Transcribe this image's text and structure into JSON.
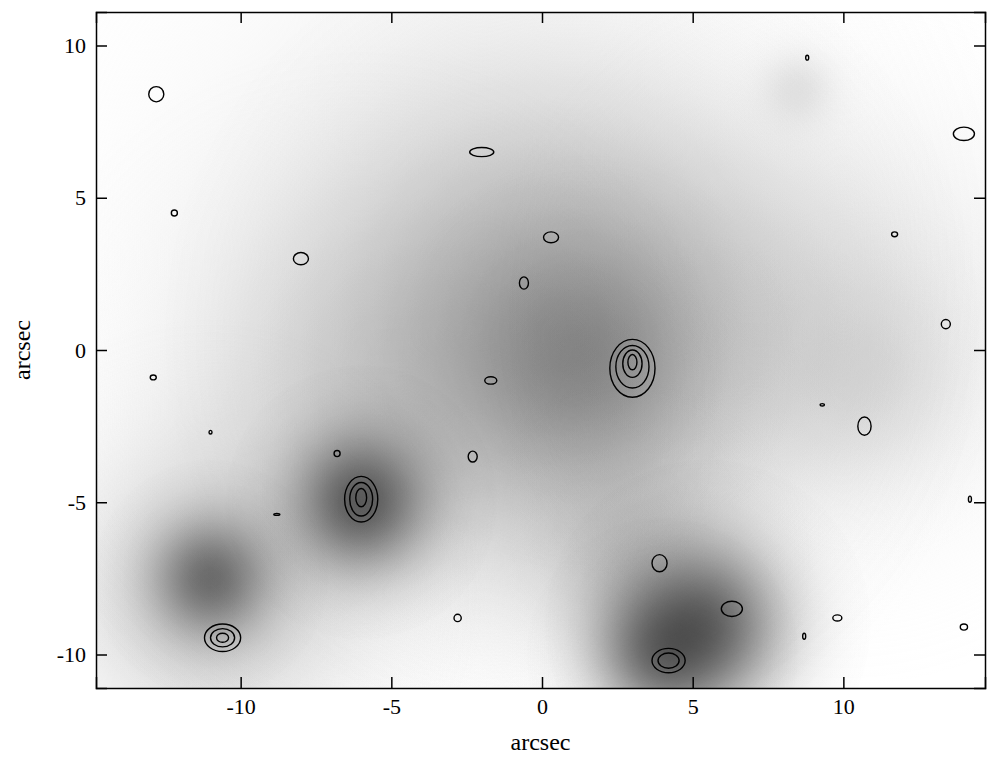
{
  "chart_data": {
    "type": "contour",
    "xlabel": "arcsec",
    "ylabel": "arcsec",
    "xlim": [
      -14.8,
      14.7
    ],
    "ylim": [
      -11.1,
      11.1
    ],
    "xticks": [
      -10,
      -5,
      0,
      5,
      10
    ],
    "yticks": [
      -10,
      -5,
      0,
      5,
      10
    ],
    "grid": false,
    "color": "#000000",
    "sources": [
      {
        "x": -2,
        "y": 3,
        "sigma": 6,
        "amplitude": 0.18
      },
      {
        "x": 1,
        "y": 0.5,
        "sigma": 4.5,
        "amplitude": 0.4
      },
      {
        "x": 1.5,
        "y": -0.5,
        "sigma": 2.3,
        "amplitude": 0.3
      },
      {
        "x": 10,
        "y": 1,
        "sigma": 4,
        "amplitude": 0.18
      },
      {
        "x": 11,
        "y": -1,
        "sigma": 2,
        "amplitude": 0.12
      },
      {
        "x": -6,
        "y": -2,
        "sigma": 4,
        "amplitude": 0.2
      },
      {
        "x": -6,
        "y": -5,
        "sigma": 1.5,
        "amplitude": 0.65
      },
      {
        "x": -11,
        "y": -8,
        "sigma": 3,
        "amplitude": 0.3
      },
      {
        "x": -11,
        "y": -7.5,
        "sigma": 1.3,
        "amplitude": 0.55
      },
      {
        "x": 3,
        "y": -7,
        "sigma": 2,
        "amplitude": 0.25
      },
      {
        "x": 5.5,
        "y": -9,
        "sigma": 1.8,
        "amplitude": 0.6
      },
      {
        "x": 4,
        "y": -10,
        "sigma": 1.5,
        "amplitude": 0.55
      },
      {
        "x": 8.5,
        "y": 8.6,
        "sigma": 0.8,
        "amplitude": 0.15
      }
    ],
    "contours": [
      {
        "x": 3,
        "y": -0.6,
        "rx": 0.75,
        "ry": 0.95
      },
      {
        "x": 3,
        "y": -0.55,
        "rx": 0.55,
        "ry": 0.7
      },
      {
        "x": 3,
        "y": -0.45,
        "rx": 0.32,
        "ry": 0.45
      },
      {
        "x": 3,
        "y": -0.4,
        "rx": 0.15,
        "ry": 0.25
      },
      {
        "x": -6,
        "y": -4.9,
        "rx": 0.55,
        "ry": 0.75
      },
      {
        "x": -6,
        "y": -4.9,
        "rx": 0.38,
        "ry": 0.55
      },
      {
        "x": -6,
        "y": -4.85,
        "rx": 0.18,
        "ry": 0.3
      },
      {
        "x": -10.6,
        "y": -9.45,
        "rx": 0.6,
        "ry": 0.45
      },
      {
        "x": -10.6,
        "y": -9.45,
        "rx": 0.4,
        "ry": 0.3
      },
      {
        "x": -10.6,
        "y": -9.45,
        "rx": 0.2,
        "ry": 0.15
      },
      {
        "x": 4.2,
        "y": -10.2,
        "rx": 0.55,
        "ry": 0.4
      },
      {
        "x": 4.2,
        "y": -10.2,
        "rx": 0.35,
        "ry": 0.25
      },
      {
        "x": -12.8,
        "y": 8.4,
        "rx": 0.25,
        "ry": 0.25
      },
      {
        "x": -12.2,
        "y": 4.5,
        "rx": 0.1,
        "ry": 0.1
      },
      {
        "x": -8,
        "y": 3,
        "rx": 0.25,
        "ry": 0.2
      },
      {
        "x": -2,
        "y": 6.5,
        "rx": 0.4,
        "ry": 0.15
      },
      {
        "x": 0.3,
        "y": 3.7,
        "rx": 0.25,
        "ry": 0.18
      },
      {
        "x": -0.6,
        "y": 2.2,
        "rx": 0.15,
        "ry": 0.2
      },
      {
        "x": -12.9,
        "y": -0.9,
        "rx": 0.1,
        "ry": 0.08
      },
      {
        "x": -1.7,
        "y": -1,
        "rx": 0.2,
        "ry": 0.12
      },
      {
        "x": -11,
        "y": -2.7,
        "rx": 0.05,
        "ry": 0.06
      },
      {
        "x": -6.8,
        "y": -3.4,
        "rx": 0.1,
        "ry": 0.1
      },
      {
        "x": -2.3,
        "y": -3.5,
        "rx": 0.15,
        "ry": 0.18
      },
      {
        "x": -8.8,
        "y": -5.4,
        "rx": 0.1,
        "ry": 0.03
      },
      {
        "x": -2.8,
        "y": -8.8,
        "rx": 0.12,
        "ry": 0.12
      },
      {
        "x": 3.9,
        "y": -7,
        "rx": 0.25,
        "ry": 0.28
      },
      {
        "x": 6.3,
        "y": -8.5,
        "rx": 0.35,
        "ry": 0.25
      },
      {
        "x": 9.8,
        "y": -8.8,
        "rx": 0.15,
        "ry": 0.1
      },
      {
        "x": 8.7,
        "y": -9.4,
        "rx": 0.05,
        "ry": 0.1
      },
      {
        "x": 10.7,
        "y": -2.5,
        "rx": 0.22,
        "ry": 0.3
      },
      {
        "x": 9.3,
        "y": -1.8,
        "rx": 0.07,
        "ry": 0.04
      },
      {
        "x": 11.7,
        "y": 3.8,
        "rx": 0.1,
        "ry": 0.08
      },
      {
        "x": 13.4,
        "y": 0.85,
        "rx": 0.15,
        "ry": 0.15
      },
      {
        "x": 14,
        "y": 7.1,
        "rx": 0.35,
        "ry": 0.22
      },
      {
        "x": 14,
        "y": -9.1,
        "rx": 0.12,
        "ry": 0.1
      },
      {
        "x": 14.2,
        "y": -4.9,
        "rx": 0.05,
        "ry": 0.1
      },
      {
        "x": 8.8,
        "y": 9.6,
        "rx": 0.05,
        "ry": 0.08
      }
    ]
  }
}
